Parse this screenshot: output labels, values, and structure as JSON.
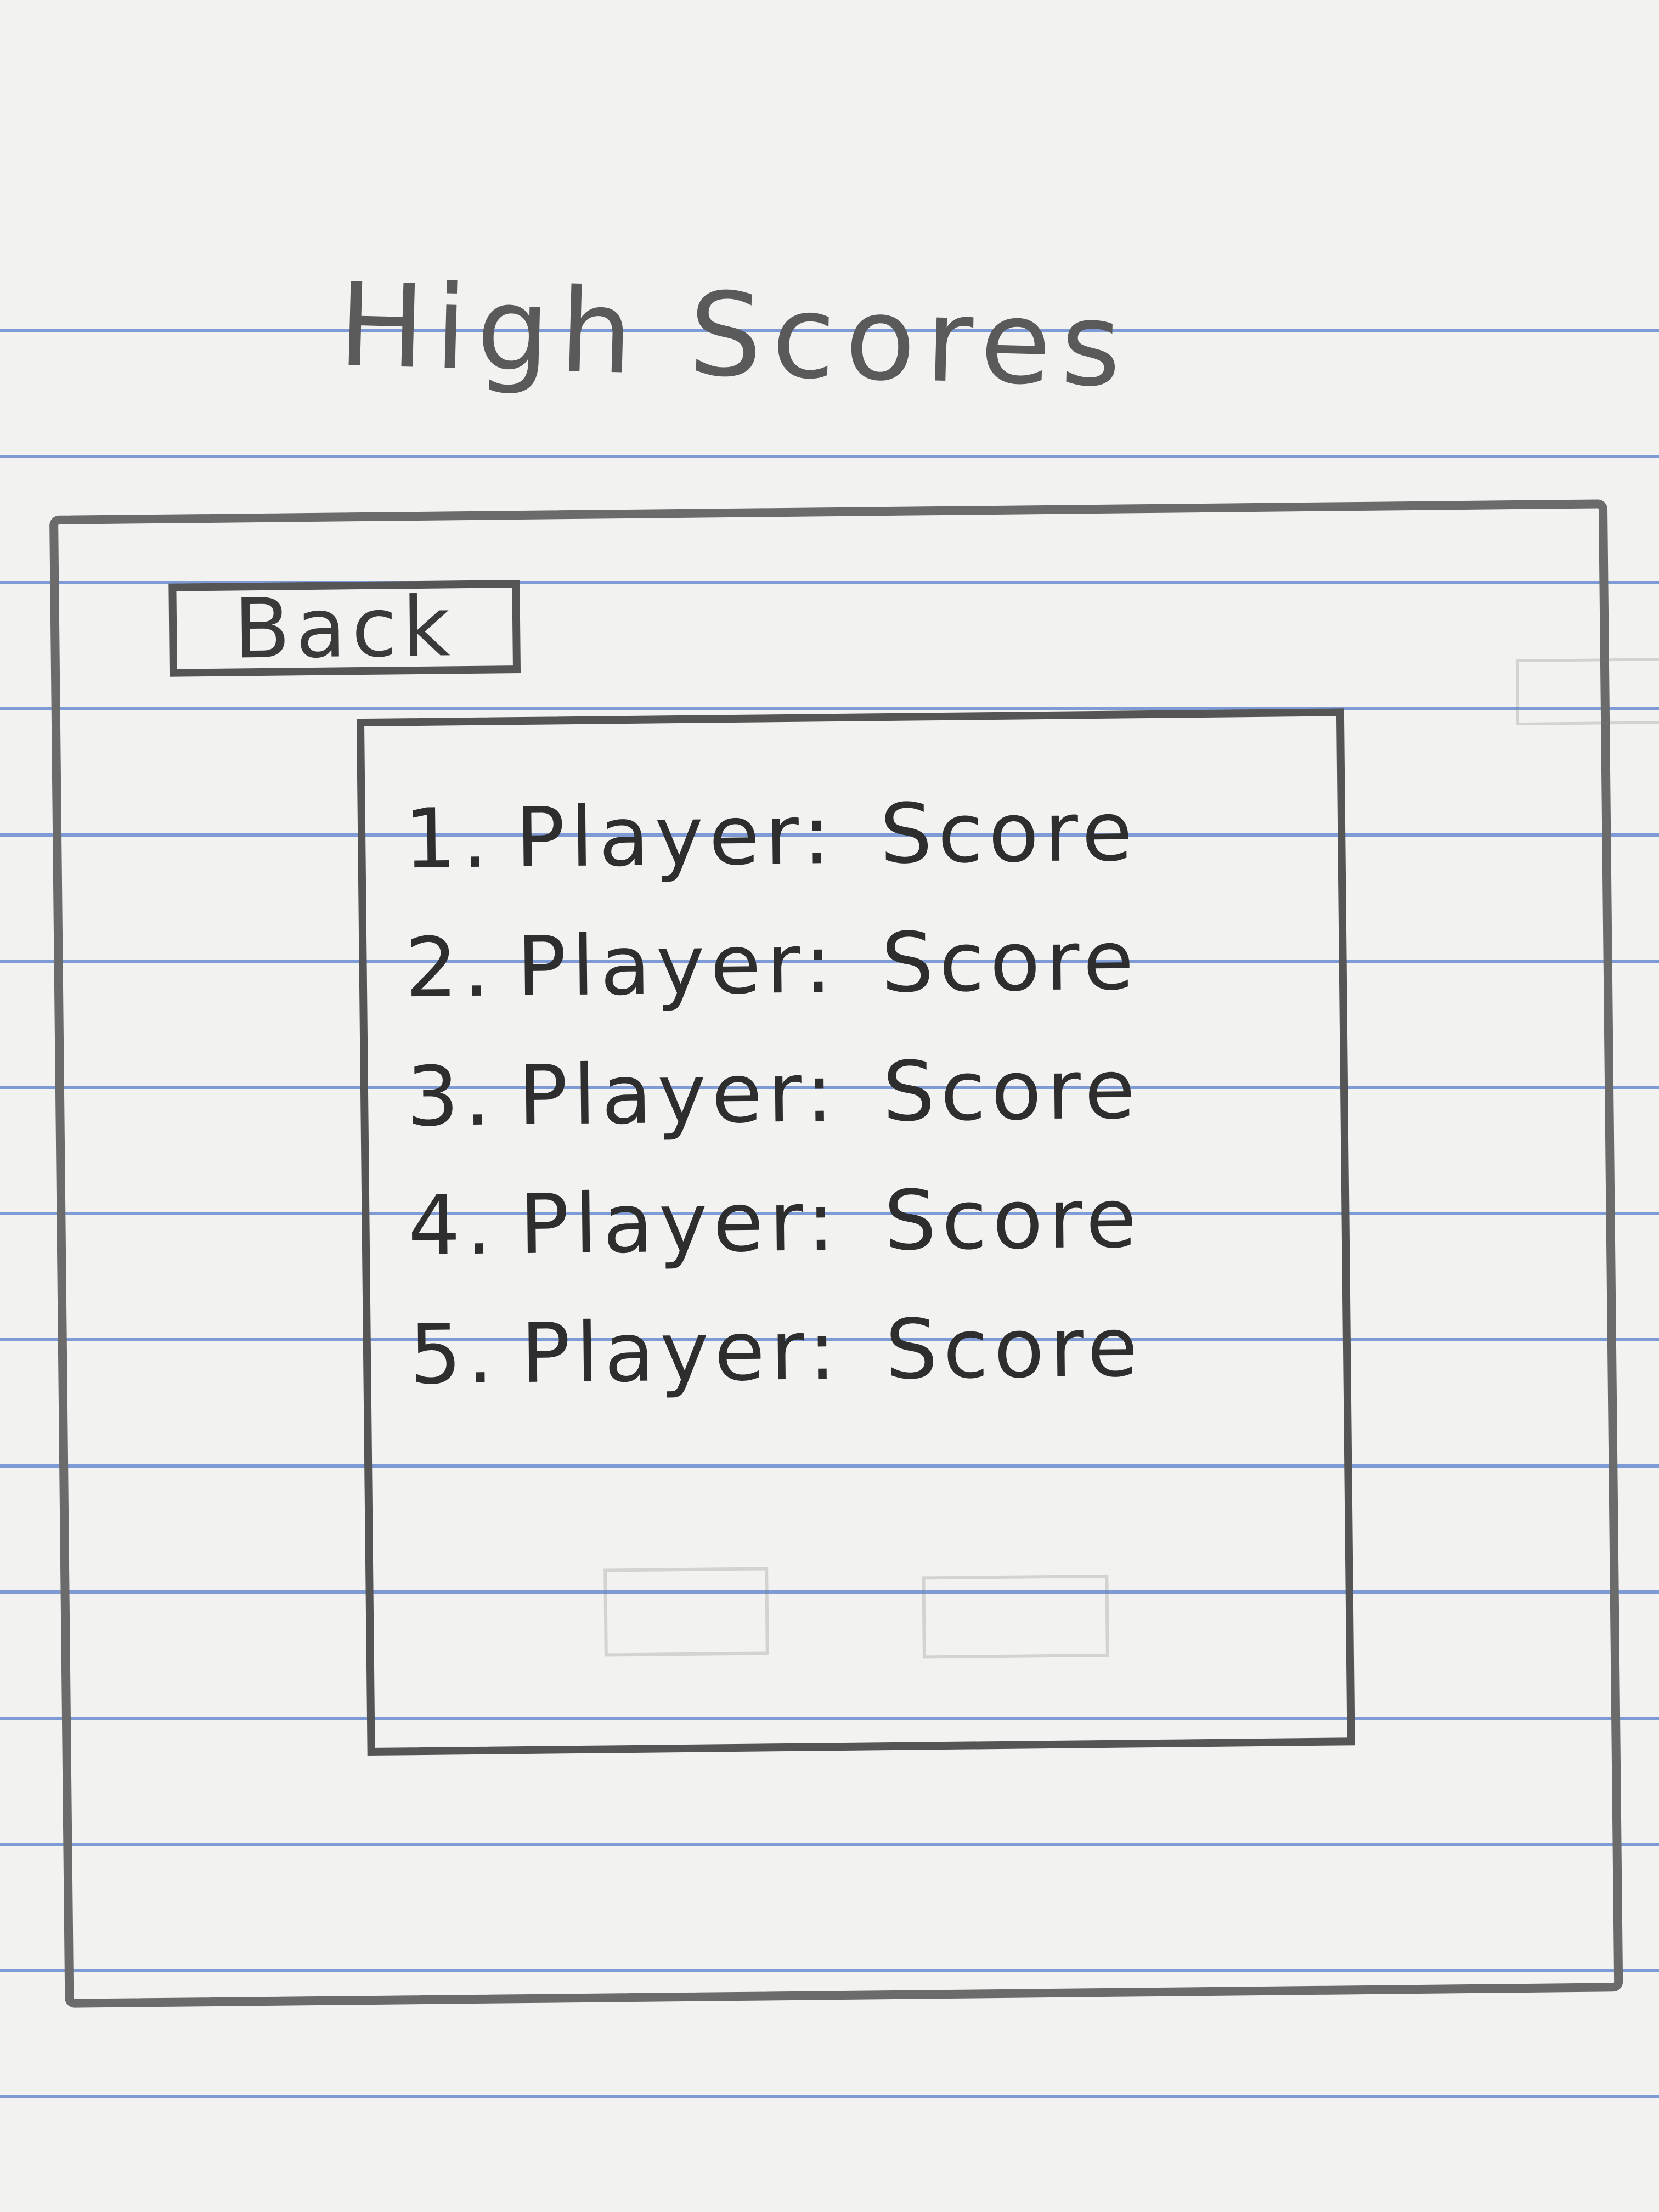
{
  "header": {
    "title": "High Scores"
  },
  "toolbar": {
    "back_label": "Back"
  },
  "scores": [
    {
      "rank": "1.",
      "player": "Player:",
      "score": "Score"
    },
    {
      "rank": "2.",
      "player": "Player:",
      "score": "Score"
    },
    {
      "rank": "3.",
      "player": "Player:",
      "score": "Score"
    },
    {
      "rank": "4.",
      "player": "Player:",
      "score": "Score"
    },
    {
      "rank": "5.",
      "player": "Player:",
      "score": "Score"
    }
  ],
  "colors": {
    "paper": "#f2f2f0",
    "rule_lines": "#7f9bd6",
    "pencil": "#555555"
  }
}
